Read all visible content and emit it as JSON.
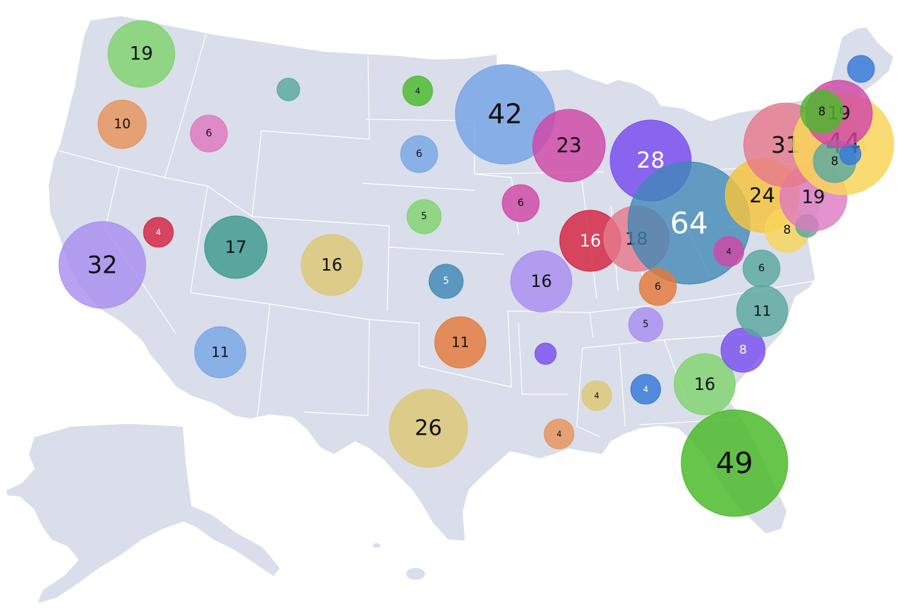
{
  "map": {
    "type": "proportional-symbol-map",
    "colors": {
      "land": "#d9deea",
      "border": "#ffffff"
    }
  },
  "bubbles": [
    {
      "region": "Washington",
      "value": 19,
      "color": "#7fd36e",
      "label_color": "#111111"
    },
    {
      "region": "Oregon",
      "value": 10,
      "color": "#e8935a",
      "label_color": "#111111"
    },
    {
      "region": "Idaho",
      "value": 6,
      "color": "#df78c0",
      "label_color": "#111111"
    },
    {
      "region": "Montana",
      "value": 1,
      "color": "#5aa89f",
      "label_color": "#111111"
    },
    {
      "region": "North Dakota",
      "value": 4,
      "color": "#4cbb2c",
      "label_color": "#111111"
    },
    {
      "region": "South Dakota",
      "value": 6,
      "color": "#78a6e6",
      "label_color": "#111111"
    },
    {
      "region": "Nebraska",
      "value": 5,
      "color": "#80d46e",
      "label_color": "#111111"
    },
    {
      "region": "Minnesota",
      "value": 42,
      "color": "#78a6e6",
      "label_color": "#111111"
    },
    {
      "region": "Wisconsin",
      "value": 23,
      "color": "#d147a6",
      "label_color": "#111111"
    },
    {
      "region": "Iowa",
      "value": 6,
      "color": "#d147a6",
      "label_color": "#111111"
    },
    {
      "region": "Michigan",
      "value": 28,
      "color": "#7a4ff0",
      "label_color": "#ffffff"
    },
    {
      "region": "Nevada",
      "value": 4,
      "color": "#d6223f",
      "label_color": "#ffffff"
    },
    {
      "region": "California",
      "value": 32,
      "color": "#aa8df2",
      "label_color": "#111111"
    },
    {
      "region": "Utah",
      "value": 17,
      "color": "#3d9a8e",
      "label_color": "#111111"
    },
    {
      "region": "Colorado",
      "value": 16,
      "color": "#dec774",
      "label_color": "#111111"
    },
    {
      "region": "Kansas",
      "value": 5,
      "color": "#3f88b6",
      "label_color": "#ffffff"
    },
    {
      "region": "Missouri",
      "value": 16,
      "color": "#aa8df2",
      "label_color": "#111111"
    },
    {
      "region": "Arizona",
      "value": 11,
      "color": "#78a6e6",
      "label_color": "#111111"
    },
    {
      "region": "Oklahoma",
      "value": 11,
      "color": "#e5793a",
      "label_color": "#111111"
    },
    {
      "region": "Arkansas",
      "value": 1,
      "color": "#7a4ff0",
      "label_color": "#ffffff"
    },
    {
      "region": "Texas",
      "value": 26,
      "color": "#dec774",
      "label_color": "#111111"
    },
    {
      "region": "Louisiana",
      "value": 4,
      "color": "#e8935a",
      "label_color": "#111111"
    },
    {
      "region": "Mississippi",
      "value": 4,
      "color": "#dec774",
      "label_color": "#111111"
    },
    {
      "region": "Alabama",
      "value": 4,
      "color": "#3478d9",
      "label_color": "#ffffff"
    },
    {
      "region": "Illinois",
      "value": 16,
      "color": "#d6223f",
      "label_color": "#ffffff"
    },
    {
      "region": "Indiana",
      "value": 18,
      "color": "#e67a8c",
      "label_color": "#111111"
    },
    {
      "region": "Ohio",
      "value": 64,
      "color": "#3f88b6",
      "label_color": "#ffffff"
    },
    {
      "region": "Kentucky",
      "value": 6,
      "color": "#e5793a",
      "label_color": "#111111"
    },
    {
      "region": "Tennessee",
      "value": 5,
      "color": "#aa8df2",
      "label_color": "#111111"
    },
    {
      "region": "West Virginia",
      "value": 4,
      "color": "#d147a6",
      "label_color": "#111111"
    },
    {
      "region": "Georgia",
      "value": 16,
      "color": "#80d46e",
      "label_color": "#111111"
    },
    {
      "region": "South Carolina",
      "value": 8,
      "color": "#7a4ff0",
      "label_color": "#ffffff"
    },
    {
      "region": "North Carolina",
      "value": 11,
      "color": "#5aa89f",
      "label_color": "#111111"
    },
    {
      "region": "Virginia",
      "value": 6,
      "color": "#5aa89f",
      "label_color": "#111111"
    },
    {
      "region": "Florida",
      "value": 49,
      "color": "#4cbb2c",
      "label_color": "#111111"
    },
    {
      "region": "Pennsylvania",
      "value": 24,
      "color": "#f7c43c",
      "label_color": "#111111"
    },
    {
      "region": "Maryland",
      "value": 8,
      "color": "#f9d55a",
      "label_color": "#111111"
    },
    {
      "region": "Delaware",
      "value": 1,
      "color": "#5aa89f",
      "label_color": "#111111"
    },
    {
      "region": "New Jersey",
      "value": 19,
      "color": "#df78c0",
      "label_color": "#111111"
    },
    {
      "region": "New York",
      "value": 31,
      "color": "#e67a8c",
      "label_color": "#111111"
    },
    {
      "region": "Massachusetts",
      "value": 44,
      "color": "#f9d55a",
      "label_color": "#111111"
    },
    {
      "region": "Connecticut",
      "value": 8,
      "color": "#5aa89f",
      "label_color": "#111111"
    },
    {
      "region": "Rhode Island",
      "value": 1,
      "color": "#3478d9",
      "label_color": "#111111"
    },
    {
      "region": "Vermont",
      "value": 19,
      "color": "#d147a6",
      "label_color": "#111111"
    },
    {
      "region": "New Hampshire",
      "value": 8,
      "color": "#4cbb2c",
      "label_color": "#111111"
    },
    {
      "region": "Maine",
      "value": 1,
      "color": "#3478d9",
      "label_color": "#ffffff"
    }
  ]
}
